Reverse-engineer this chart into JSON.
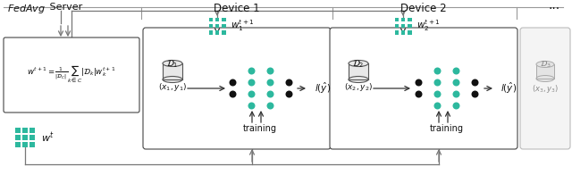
{
  "fig_width": 6.4,
  "fig_height": 1.96,
  "dpi": 100,
  "bg_color": "#ffffff",
  "teal_color": "#2db89e",
  "dark_color": "#111111",
  "box_edge_color": "#444444",
  "arrow_color": "#333333",
  "title_fedavg": "FedAvg",
  "title_server": " Server",
  "title_device1": "Device 1",
  "title_device2": "Device 2",
  "title_dots": "···",
  "formula_line1": "$w^{t+1} = \\frac{1}{|\\mathcal{D}_C|}\\sum_{k \\in C}|\\mathcal{D}_k|w_k^{t+1}$",
  "w_t_label": "$w^t$",
  "w1_label": "$w_1^{t+1}$",
  "w2_label": "$w_2^{t+1}$",
  "d1_label": "$\\mathcal{D}_1$",
  "d1_data": "$(x_1, y_1)$",
  "d2_label": "$\\mathcal{D}_2$",
  "d2_data": "$(x_2, y_2)$",
  "d3_label": "$\\mathcal{D}_3$",
  "d3_data": "$(x_3, y_3)$",
  "loss_label": "$l(\\hat{y})$",
  "training_label": "training"
}
